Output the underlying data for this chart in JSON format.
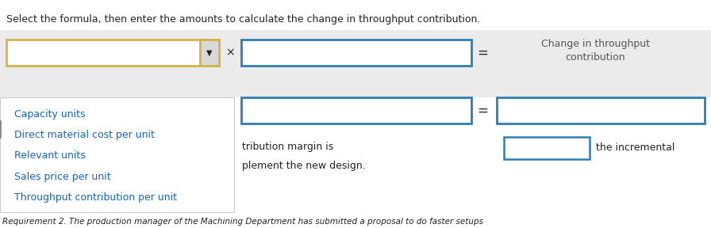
{
  "fig_w": 8.96,
  "fig_h": 2.88,
  "dpi": 100,
  "bg_color": "#ffffff",
  "panel_color": "#ebebeb",
  "white": "#ffffff",
  "dropdown_border": "#d4b44a",
  "input_border": "#2e7db5",
  "arrow_bg": "#d8d8d8",
  "blue_text": "#1565c0",
  "dark_text": "#222222",
  "gray_text": "#555555",
  "header_text": "Select the formula, then enter the amounts to calculate the change in throughput contribution.",
  "label_line1": "Change in throughput",
  "label_line2": "contribution",
  "dropdown_items": [
    "Capacity units",
    "Direct material cost per unit",
    "Relevant units",
    "Sales price per unit",
    "Throughput contribution per unit"
  ],
  "text_tribution": "tribution margin is",
  "text_plement": "plement the new design.",
  "text_bottom": "Requirement 2. The production manager of the Machining Department has submitted a proposal to do faster setups",
  "text_the_incremental": "the incremental"
}
